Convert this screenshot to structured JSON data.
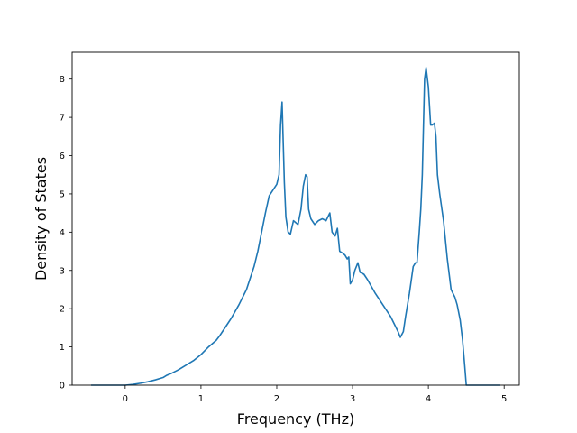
{
  "chart_data": {
    "type": "line",
    "title": "",
    "xlabel": "Frequency (THz)",
    "ylabel": "Density of States",
    "xlim": [
      -0.7,
      5.2
    ],
    "ylim": [
      0,
      8.7
    ],
    "grid": false,
    "line_color": "#1f77b4",
    "xticks": [
      {
        "value": 0,
        "label": "0"
      },
      {
        "value": 1,
        "label": "1"
      },
      {
        "value": 2,
        "label": "2"
      },
      {
        "value": 3,
        "label": "3"
      },
      {
        "value": 4,
        "label": "4"
      },
      {
        "value": 5,
        "label": "5"
      }
    ],
    "yticks": [
      {
        "value": 0,
        "label": "0"
      },
      {
        "value": 1,
        "label": "1"
      },
      {
        "value": 2,
        "label": "2"
      },
      {
        "value": 3,
        "label": "3"
      },
      {
        "value": 4,
        "label": "4"
      },
      {
        "value": 5,
        "label": "5"
      },
      {
        "value": 6,
        "label": "6"
      },
      {
        "value": 7,
        "label": "7"
      },
      {
        "value": 8,
        "label": "8"
      }
    ],
    "series": [
      {
        "x": [
          -0.45,
          -0.2,
          0.0,
          0.1,
          0.2,
          0.3,
          0.4,
          0.5,
          0.55,
          0.6,
          0.7,
          0.8,
          0.9,
          1.0,
          1.1,
          1.2,
          1.25,
          1.3,
          1.4,
          1.5,
          1.6,
          1.7,
          1.75,
          1.8,
          1.85,
          1.9,
          1.95,
          2.0,
          2.03,
          2.05,
          2.07,
          2.1,
          2.12,
          2.15,
          2.18,
          2.22,
          2.25,
          2.28,
          2.32,
          2.35,
          2.38,
          2.4,
          2.42,
          2.45,
          2.5,
          2.55,
          2.6,
          2.65,
          2.7,
          2.73,
          2.77,
          2.8,
          2.83,
          2.87,
          2.9,
          2.93,
          2.95,
          2.97,
          3.0,
          3.03,
          3.07,
          3.1,
          3.15,
          3.2,
          3.3,
          3.4,
          3.5,
          3.55,
          3.6,
          3.63,
          3.67,
          3.7,
          3.75,
          3.8,
          3.83,
          3.85,
          3.88,
          3.9,
          3.92,
          3.95,
          3.97,
          4.0,
          4.03,
          4.05,
          4.08,
          4.1,
          4.12,
          4.15,
          4.2,
          4.25,
          4.3,
          4.35,
          4.38,
          4.42,
          4.45,
          4.48,
          4.5,
          4.6,
          4.8,
          4.95
        ],
        "y": [
          0.0,
          0.0,
          0.0,
          0.02,
          0.05,
          0.09,
          0.14,
          0.2,
          0.26,
          0.3,
          0.4,
          0.52,
          0.64,
          0.8,
          1.0,
          1.17,
          1.3,
          1.45,
          1.75,
          2.1,
          2.5,
          3.1,
          3.5,
          4.0,
          4.5,
          4.95,
          5.1,
          5.25,
          5.5,
          6.8,
          7.4,
          5.3,
          4.4,
          4.0,
          3.95,
          4.3,
          4.25,
          4.2,
          4.6,
          5.2,
          5.5,
          5.45,
          4.6,
          4.35,
          4.2,
          4.3,
          4.35,
          4.3,
          4.5,
          4.0,
          3.9,
          4.1,
          3.5,
          3.45,
          3.4,
          3.3,
          3.35,
          2.65,
          2.75,
          3.0,
          3.2,
          2.95,
          2.9,
          2.75,
          2.4,
          2.1,
          1.8,
          1.6,
          1.4,
          1.25,
          1.4,
          1.8,
          2.4,
          3.1,
          3.2,
          3.2,
          4.0,
          4.6,
          5.5,
          8.0,
          8.3,
          7.8,
          6.8,
          6.8,
          6.85,
          6.5,
          5.5,
          5.0,
          4.3,
          3.3,
          2.5,
          2.3,
          2.1,
          1.7,
          1.2,
          0.5,
          0.0,
          0.0,
          0.0,
          0.0
        ]
      }
    ]
  }
}
